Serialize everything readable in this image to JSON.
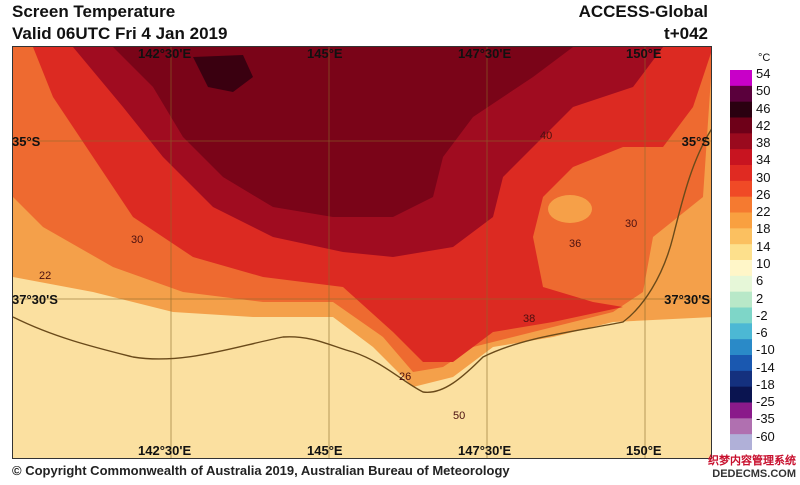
{
  "header": {
    "title": "Screen Temperature",
    "valid": "Valid 06UTC Fri 4 Jan 2019",
    "model": "ACCESS-Global",
    "lead": "t+042"
  },
  "grid_labels": {
    "lon_top": [
      "142°30'E",
      "145°E",
      "147°30'E",
      "150°E"
    ],
    "lon_bottom": [
      "142°30'E",
      "145°E",
      "147°30'E",
      "150°E"
    ],
    "lat_left": [
      "35°S",
      "37°30'S"
    ],
    "lat_right": [
      "35°S",
      "37°30'S"
    ]
  },
  "contour_labels": [
    "40",
    "30",
    "38",
    "22",
    "26",
    "30",
    "36",
    "50"
  ],
  "colorbar": {
    "unit": "°C",
    "ticks": [
      "54",
      "50",
      "46",
      "42",
      "38",
      "34",
      "30",
      "26",
      "22",
      "18",
      "14",
      "10",
      "6",
      "2",
      "-2",
      "-6",
      "-10",
      "-14",
      "-18",
      "-25",
      "-35",
      "-60"
    ],
    "colors": [
      "#c800c8",
      "#5a003c",
      "#2a0010",
      "#6e0018",
      "#9a0a1e",
      "#c81420",
      "#e02a22",
      "#f04a26",
      "#f57a30",
      "#f9a040",
      "#fbc060",
      "#fde08c",
      "#fff6c8",
      "#e6f7d8",
      "#b8e8c8",
      "#7ed6c8",
      "#4cb8d4",
      "#2a8ac8",
      "#1a58b0",
      "#14307e",
      "#0a1450",
      "#8a1a8a",
      "#b070b0",
      "#b0b0d8"
    ]
  },
  "footer": "© Copyright Commonwealth of Australia 2019, Australian Bureau of Meteorology",
  "watermark": [
    "织梦内容管理系统",
    "DEDECMS.COM"
  ]
}
